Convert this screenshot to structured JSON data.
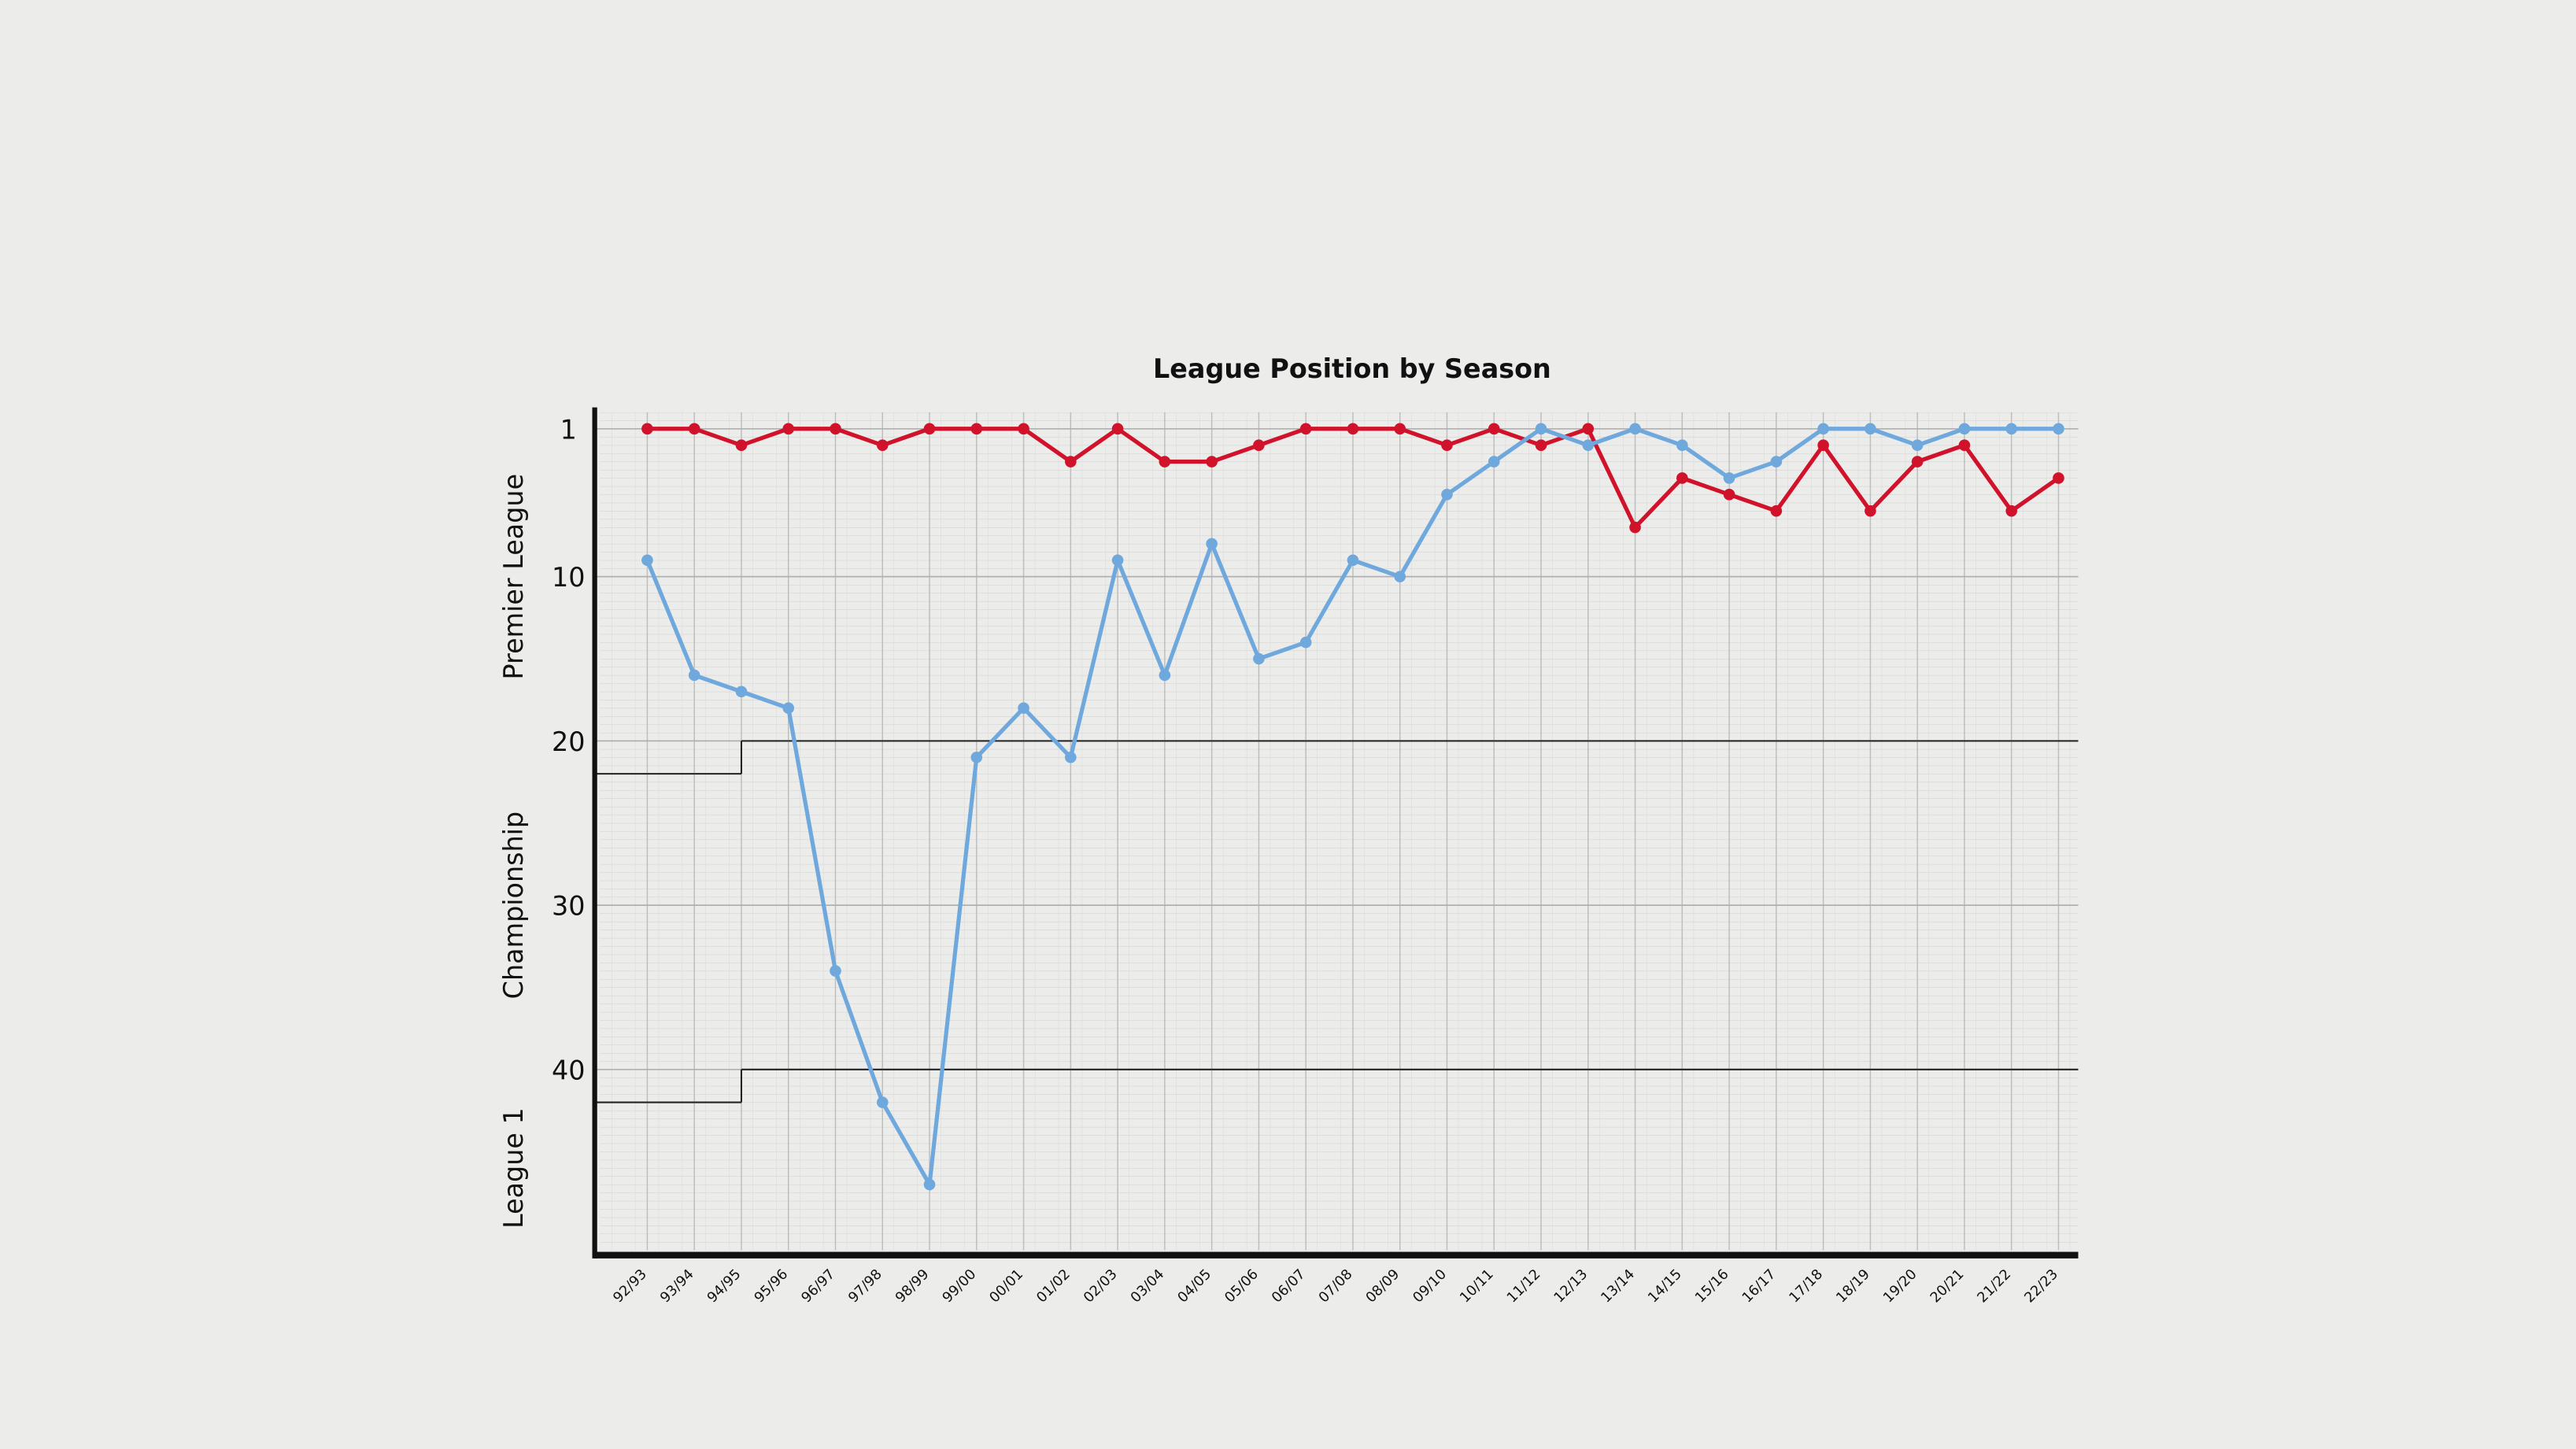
{
  "chart_data": {
    "type": "line",
    "title": "League Position by Season",
    "categories": [
      "92/93",
      "93/94",
      "94/95",
      "95/96",
      "96/97",
      "97/98",
      "98/99",
      "99/00",
      "00/01",
      "01/02",
      "02/03",
      "03/04",
      "04/05",
      "05/06",
      "06/07",
      "07/08",
      "08/09",
      "09/10",
      "10/11",
      "11/12",
      "12/13",
      "13/14",
      "14/15",
      "15/16",
      "16/17",
      "17/18",
      "18/19",
      "19/20",
      "20/21",
      "21/22",
      "22/23"
    ],
    "series": [
      {
        "color": "#d0122a",
        "values": [
          1,
          1,
          2,
          1,
          1,
          2,
          1,
          1,
          1,
          3,
          1,
          3,
          3,
          2,
          1,
          1,
          1,
          2,
          1,
          2,
          1,
          7,
          4,
          5,
          6,
          2,
          6,
          3,
          2,
          6,
          4
        ]
      },
      {
        "color": "#6fa8dc",
        "values": [
          9,
          16,
          17,
          18,
          34,
          42,
          47,
          21,
          18,
          21,
          9,
          16,
          8,
          15,
          14,
          9,
          10,
          5,
          3,
          1,
          2,
          1,
          2,
          4,
          3,
          1,
          1,
          2,
          1,
          1,
          1
        ]
      }
    ],
    "division_lines": [
      {
        "values": [
          22,
          22,
          22,
          20,
          20,
          20,
          20,
          20,
          20,
          20,
          20,
          20,
          20,
          20,
          20,
          20,
          20,
          20,
          20,
          20,
          20,
          20,
          20,
          20,
          20,
          20,
          20,
          20,
          20,
          20,
          20
        ]
      },
      {
        "values": [
          42,
          42,
          42,
          40,
          40,
          40,
          40,
          40,
          40,
          40,
          40,
          40,
          40,
          40,
          40,
          40,
          40,
          40,
          40,
          40,
          40,
          40,
          40,
          40,
          40,
          40,
          40,
          40,
          40,
          40,
          40
        ]
      }
    ],
    "division_labels": [
      {
        "label": "Premier League",
        "value": 10
      },
      {
        "label": "Championship",
        "value": 30
      },
      {
        "label": "League 1",
        "value": 46
      }
    ],
    "ylim": [
      51,
      0
    ],
    "yticks": [
      1,
      10,
      20,
      30,
      40
    ],
    "grid": true
  }
}
